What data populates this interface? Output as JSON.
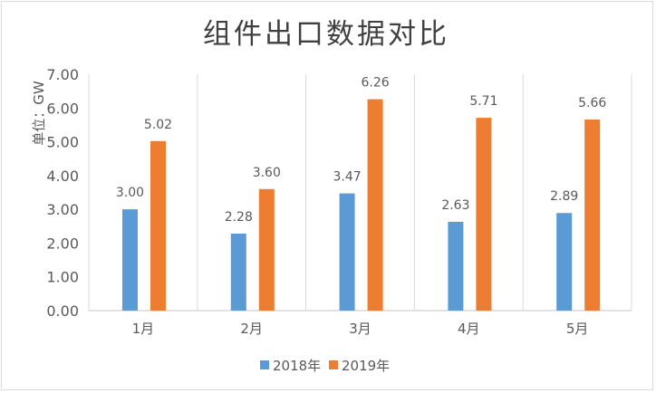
{
  "chart_data": {
    "type": "bar",
    "title": "组件出口数据对比",
    "ylabel": "单位：GW",
    "xlabel": "",
    "categories": [
      "1月",
      "2月",
      "3月",
      "4月",
      "5月"
    ],
    "series": [
      {
        "name": "2018年",
        "color": "#5b9bd5",
        "values": [
          3.0,
          2.28,
          3.47,
          2.63,
          2.89
        ]
      },
      {
        "name": "2019年",
        "color": "#ed7d31",
        "values": [
          5.02,
          3.6,
          6.26,
          5.71,
          5.66
        ]
      }
    ],
    "ylim": [
      0,
      7
    ],
    "yticks": [
      "0.00",
      "1.00",
      "2.00",
      "3.00",
      "4.00",
      "5.00",
      "6.00",
      "7.00"
    ],
    "grid": "vertical category separators",
    "legend": "bottom",
    "data_labels": true
  }
}
